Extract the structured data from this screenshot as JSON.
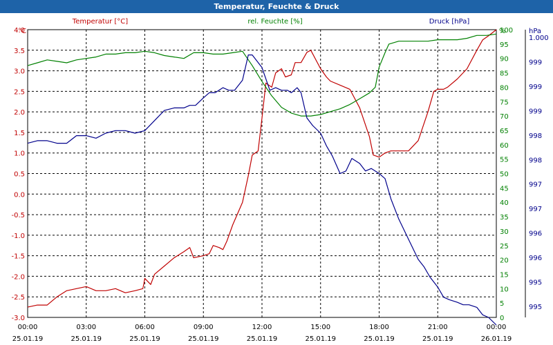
{
  "window": {
    "title": "Temperatur, Feuchte & Druck"
  },
  "chart_data": {
    "type": "line",
    "title": "Temperatur, Feuchte & Druck",
    "x_ticks": [
      {
        "time": "00:00",
        "date": "25.01.19"
      },
      {
        "time": "03:00",
        "date": "25.01.19"
      },
      {
        "time": "06:00",
        "date": "25.01.19"
      },
      {
        "time": "09:00",
        "date": "25.01.19"
      },
      {
        "time": "12:00",
        "date": "25.01.19"
      },
      {
        "time": "15:00",
        "date": "25.01.19"
      },
      {
        "time": "18:00",
        "date": "25.01.19"
      },
      {
        "time": "21:00",
        "date": "25.01.19"
      },
      {
        "time": "00:00",
        "date": "26.01.19"
      }
    ],
    "xlim_hours": [
      0,
      24
    ],
    "grid": true,
    "axes": {
      "temperature": {
        "label": "Temperatur [°C]",
        "unit": "°C",
        "color": "#c00000",
        "ylim": [
          -3.0,
          4.0
        ],
        "ticks": [
          "4.0",
          "3.5",
          "3.0",
          "2.5",
          "2.0",
          "1.5",
          "1.0",
          "0.5",
          "0.0",
          "-0.5",
          "-1.0",
          "-1.5",
          "-2.0",
          "-2.5",
          "-3.0"
        ]
      },
      "humidity": {
        "label": "rel. Feuchte [%]",
        "unit": "%",
        "color": "#008000",
        "ylim": [
          0,
          100
        ],
        "ticks": [
          "100",
          "95",
          "90",
          "85",
          "80",
          "75",
          "70",
          "65",
          "60",
          "55",
          "50",
          "45",
          "40",
          "35",
          "30",
          "25",
          "20",
          "15",
          "10",
          "5",
          "0"
        ]
      },
      "pressure": {
        "label": "Druck [hPa]",
        "unit": "hPa",
        "color": "#00008b",
        "ylim": [
          994.5,
          1000.2
        ],
        "ticks": [
          "1.000",
          "999",
          "999",
          "999",
          "998",
          "998",
          "997",
          "997",
          "996",
          "996",
          "995",
          "995"
        ]
      }
    },
    "series": [
      {
        "name": "Temperatur [°C]",
        "axis": "temperature",
        "color": "#c00000",
        "x": [
          0,
          0.5,
          1,
          1.5,
          2,
          2.5,
          3,
          3.5,
          4,
          4.5,
          5,
          5.5,
          5.9,
          6,
          6.3,
          6.5,
          7,
          7.5,
          8,
          8.3,
          8.5,
          9,
          9.3,
          9.5,
          9.8,
          10,
          10.2,
          10.5,
          11,
          11.3,
          11.5,
          11.8,
          12,
          12.2,
          12.5,
          12.7,
          13,
          13.2,
          13.5,
          13.7,
          14,
          14.3,
          14.5,
          15,
          15.3,
          15.5,
          16,
          16.5,
          17,
          17.5,
          17.7,
          18,
          18.3,
          18.6,
          19,
          19.5,
          20,
          20.5,
          20.8,
          21,
          21.3,
          21.5,
          22,
          22.5,
          23,
          23.3,
          23.6,
          24
        ],
        "values": [
          -2.75,
          -2.7,
          -2.7,
          -2.5,
          -2.35,
          -2.3,
          -2.25,
          -2.35,
          -2.35,
          -2.3,
          -2.4,
          -2.35,
          -2.3,
          -2.05,
          -2.2,
          -1.95,
          -1.75,
          -1.55,
          -1.4,
          -1.3,
          -1.55,
          -1.5,
          -1.45,
          -1.25,
          -1.3,
          -1.35,
          -1.15,
          -0.75,
          -0.2,
          0.45,
          0.95,
          1.05,
          1.85,
          2.7,
          2.6,
          2.95,
          3.05,
          2.85,
          2.9,
          3.2,
          3.2,
          3.45,
          3.5,
          3.05,
          2.85,
          2.75,
          2.65,
          2.55,
          2.1,
          1.4,
          0.95,
          0.9,
          1.0,
          1.05,
          1.05,
          1.05,
          1.3,
          2.0,
          2.5,
          2.55,
          2.55,
          2.6,
          2.8,
          3.05,
          3.5,
          3.75,
          3.85,
          4.0
        ]
      },
      {
        "name": "rel. Feuchte [%]",
        "axis": "humidity",
        "color": "#008000",
        "x": [
          0,
          0.5,
          1,
          1.5,
          2,
          2.5,
          3,
          3.5,
          4,
          4.5,
          5,
          5.5,
          6,
          6.5,
          7,
          7.5,
          8,
          8.5,
          9,
          9.5,
          10,
          10.5,
          11,
          11.5,
          12,
          12.5,
          13,
          13.5,
          14,
          14.5,
          15,
          15.5,
          16,
          16.5,
          17,
          17.5,
          17.8,
          18,
          18.3,
          18.5,
          19,
          19.5,
          20,
          20.5,
          21,
          21.5,
          22,
          22.5,
          23,
          23.5,
          24
        ],
        "values": [
          87.5,
          88.5,
          89.5,
          89.0,
          88.5,
          89.5,
          90.0,
          90.5,
          91.5,
          91.5,
          92.0,
          92.0,
          92.5,
          92.0,
          91.0,
          90.5,
          90.0,
          92.0,
          92.0,
          91.5,
          91.5,
          92.0,
          92.5,
          87.5,
          82.0,
          77.0,
          73.0,
          71.0,
          70.0,
          70.0,
          70.5,
          71.5,
          72.5,
          74.0,
          76.0,
          78.0,
          80.0,
          87.0,
          92.0,
          95.0,
          96.0,
          96.0,
          96.0,
          96.0,
          96.5,
          96.5,
          96.5,
          97.0,
          98.0,
          98.0,
          98.5
        ]
      },
      {
        "name": "Druck [hPa]",
        "axis": "pressure",
        "color": "#00008b",
        "x": [
          0,
          0.5,
          1,
          1.5,
          2,
          2.5,
          3,
          3.5,
          4,
          4.5,
          5,
          5.5,
          6,
          6.5,
          7,
          7.5,
          8,
          8.3,
          8.6,
          9,
          9.3,
          9.6,
          10,
          10.3,
          10.6,
          11,
          11.3,
          11.5,
          12,
          12.4,
          12.7,
          13,
          13.3,
          13.5,
          13.8,
          14,
          14.3,
          14.6,
          15,
          15.3,
          15.6,
          16,
          16.3,
          16.6,
          17,
          17.3,
          17.6,
          18,
          18.3,
          18.6,
          19,
          19.5,
          20,
          20.3,
          20.6,
          21,
          21.3,
          21.6,
          22,
          22.3,
          22.6,
          23,
          23.3,
          23.6,
          24
        ],
        "values": [
          997.95,
          998.0,
          998.0,
          997.95,
          997.95,
          998.1,
          998.1,
          998.05,
          998.15,
          998.2,
          998.2,
          998.15,
          998.2,
          998.4,
          998.6,
          998.65,
          998.65,
          998.7,
          998.7,
          998.85,
          998.95,
          998.95,
          999.05,
          999.0,
          999.0,
          999.2,
          999.7,
          999.7,
          999.45,
          999.0,
          999.05,
          999.0,
          999.0,
          998.95,
          999.05,
          998.95,
          998.45,
          998.3,
          998.15,
          997.9,
          997.7,
          997.35,
          997.4,
          997.65,
          997.55,
          997.4,
          997.45,
          997.35,
          997.25,
          996.85,
          996.45,
          996.05,
          995.65,
          995.5,
          995.3,
          995.1,
          994.9,
          994.85,
          994.8,
          994.75,
          994.75,
          994.7,
          994.55,
          994.5,
          994.35
        ]
      }
    ]
  }
}
